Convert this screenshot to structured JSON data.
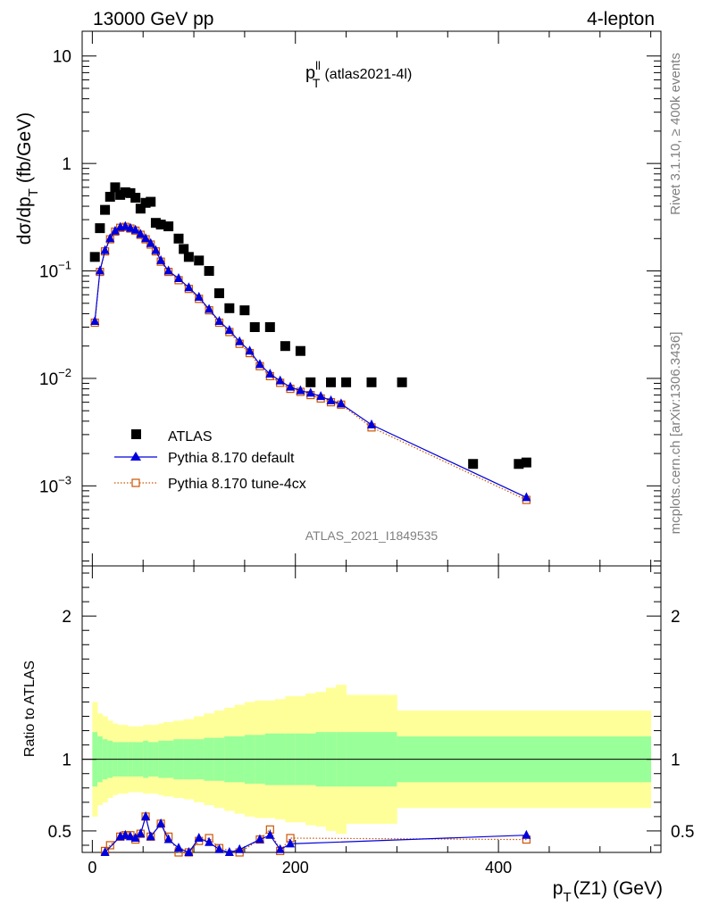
{
  "header": {
    "energy_label": "13000 GeV pp",
    "process_label": "4-lepton"
  },
  "side_labels": {
    "rivet": "Rivet 3.1.10, ≥ 400k events",
    "mcplots": "mcplots.cern.ch [arXiv:1306.3436]"
  },
  "chart_data": [
    {
      "type": "scatter",
      "panel": "main",
      "title_main": "p",
      "title_sup": "ll",
      "title_sub": "T",
      "title_suffix": "(atlas2021-4l)",
      "watermark": "ATLAS_2021_I1849535",
      "xlabel_main": "p",
      "xlabel_sub": "T",
      "xlabel_suffix": "(Z1) (GeV)",
      "ylabel_main": "dσ/dp",
      "ylabel_sub": "T",
      "ylabel_suffix": "(fb/GeV)",
      "xlim": [
        -10,
        560
      ],
      "ylim": [
        0.00018,
        17
      ],
      "yscale": "log",
      "x_ticks": [
        0,
        200,
        400
      ],
      "x_tick_labels": [
        "0",
        "200",
        "400"
      ],
      "y_ticks": [
        0.001,
        0.01,
        0.1,
        1,
        10
      ],
      "y_tick_labels": [
        {
          "base": "10",
          "exp": "−3"
        },
        {
          "base": "10",
          "exp": "−2"
        },
        {
          "base": "10",
          "exp": "−1"
        },
        {
          "base": "1",
          "exp": ""
        },
        {
          "base": "10",
          "exp": ""
        }
      ],
      "legend_position": "bottom-left",
      "series": [
        {
          "name": "ATLAS",
          "marker": "filled-square",
          "color": "#000000",
          "x": [
            2.5,
            7.5,
            12.5,
            17.5,
            22.5,
            27.5,
            32.5,
            37.5,
            42.5,
            47.5,
            52.5,
            57.5,
            62.5,
            67.5,
            75,
            85,
            90,
            95,
            105,
            115,
            125,
            135,
            150,
            160,
            175,
            190,
            205,
            215,
            235,
            250,
            275,
            305,
            375,
            420,
            427.5
          ],
          "y": [
            0.135,
            0.25,
            0.37,
            0.49,
            0.6,
            0.51,
            0.54,
            0.53,
            0.48,
            0.38,
            0.43,
            0.44,
            0.28,
            0.27,
            0.26,
            0.2,
            0.16,
            0.135,
            0.125,
            0.1,
            0.062,
            0.045,
            0.043,
            0.03,
            0.03,
            0.02,
            0.018,
            0.0092,
            0.0092,
            0.0092,
            0.0092,
            0.0092,
            0.0016,
            0.0016,
            0.00165
          ]
        },
        {
          "name": "Pythia 8.170 default",
          "marker": "filled-triangle",
          "line": "solid",
          "color": "#0000dd",
          "x": [
            2.5,
            7.5,
            12.5,
            17.5,
            22.5,
            27.5,
            32.5,
            37.5,
            42.5,
            47.5,
            52.5,
            57.5,
            62.5,
            67.5,
            75,
            85,
            95,
            105,
            115,
            125,
            135,
            145,
            155,
            165,
            175,
            185,
            195,
            205,
            215,
            225,
            235,
            245,
            275,
            427.5
          ],
          "y": [
            0.034,
            0.1,
            0.155,
            0.2,
            0.235,
            0.255,
            0.26,
            0.25,
            0.24,
            0.22,
            0.2,
            0.18,
            0.155,
            0.125,
            0.1,
            0.085,
            0.07,
            0.057,
            0.044,
            0.034,
            0.028,
            0.022,
            0.018,
            0.0135,
            0.011,
            0.0095,
            0.0083,
            0.0077,
            0.0073,
            0.0068,
            0.0062,
            0.0058,
            0.0037,
            0.00078
          ]
        },
        {
          "name": "Pythia 8.170 tune-4cx",
          "marker": "open-square",
          "line": "dotted",
          "color": "#cc5500",
          "x": [
            2.5,
            7.5,
            12.5,
            17.5,
            22.5,
            27.5,
            32.5,
            37.5,
            42.5,
            47.5,
            52.5,
            57.5,
            62.5,
            67.5,
            75,
            85,
            95,
            105,
            115,
            125,
            135,
            145,
            155,
            165,
            175,
            185,
            195,
            205,
            215,
            225,
            235,
            245,
            275,
            427.5
          ],
          "y": [
            0.033,
            0.098,
            0.152,
            0.197,
            0.232,
            0.252,
            0.257,
            0.248,
            0.237,
            0.217,
            0.197,
            0.176,
            0.152,
            0.122,
            0.098,
            0.082,
            0.068,
            0.055,
            0.043,
            0.033,
            0.027,
            0.021,
            0.0172,
            0.013,
            0.0105,
            0.0091,
            0.008,
            0.0075,
            0.007,
            0.0065,
            0.006,
            0.0057,
            0.0035,
            0.00074
          ]
        }
      ]
    },
    {
      "type": "scatter",
      "panel": "ratio",
      "ylabel": "Ratio to ATLAS",
      "xlim": [
        -10,
        560
      ],
      "ylim": [
        0.35,
        2.35
      ],
      "y_ticks": [
        0.5,
        1,
        2
      ],
      "y_tick_labels": [
        "0.5",
        "1",
        "2"
      ],
      "reference_line": 1,
      "bands": {
        "bin_edges": [
          0,
          5,
          10,
          15,
          20,
          25,
          30,
          35,
          40,
          45,
          50,
          55,
          60,
          65,
          70,
          80,
          90,
          100,
          110,
          120,
          130,
          140,
          150,
          160,
          170,
          180,
          190,
          200,
          210,
          220,
          230,
          240,
          250,
          300,
          550
        ],
        "inner_color": "#99ff99",
        "outer_color": "#ffff99",
        "inner_half_width": [
          0.19,
          0.16,
          0.14,
          0.13,
          0.12,
          0.12,
          0.12,
          0.12,
          0.12,
          0.12,
          0.13,
          0.12,
          0.12,
          0.13,
          0.13,
          0.14,
          0.14,
          0.14,
          0.15,
          0.15,
          0.16,
          0.16,
          0.17,
          0.17,
          0.18,
          0.18,
          0.18,
          0.18,
          0.18,
          0.19,
          0.19,
          0.19,
          0.19,
          0.16
        ],
        "outer_half_width": [
          0.4,
          0.32,
          0.3,
          0.27,
          0.25,
          0.24,
          0.24,
          0.23,
          0.23,
          0.23,
          0.24,
          0.24,
          0.24,
          0.25,
          0.26,
          0.27,
          0.28,
          0.3,
          0.32,
          0.34,
          0.36,
          0.38,
          0.4,
          0.41,
          0.41,
          0.42,
          0.44,
          0.44,
          0.46,
          0.47,
          0.5,
          0.52,
          0.45,
          0.34
        ]
      },
      "series": [
        {
          "name": "Pythia 8.170 default",
          "marker": "filled-triangle",
          "line": "solid",
          "color": "#0000dd",
          "x": [
            7.5,
            12.5,
            17.5,
            22.5,
            27.5,
            32.5,
            37.5,
            42.5,
            47.5,
            52.5,
            57.5,
            62.5,
            67.5,
            75,
            85,
            95,
            105,
            115,
            125,
            135,
            145,
            155,
            165,
            175,
            185,
            195,
            205,
            215,
            225,
            235,
            245,
            275,
            427.5
          ],
          "y": [
            0.33,
            0.35,
            0.34,
            0.32,
            0.46,
            0.47,
            0.46,
            0.45,
            0.48,
            0.6,
            0.46,
            0.32,
            0.55,
            0.44,
            0.38,
            0.35,
            0.45,
            0.42,
            0.37,
            0.35,
            0.37,
            0.26,
            0.44,
            0.47,
            0.37,
            0.41,
            0.3,
            0.32,
            0.32,
            0.3,
            0.32,
            0.34,
            0.47
          ]
        },
        {
          "name": "Pythia 8.170 tune-4cx",
          "marker": "open-square",
          "line": "dotted",
          "color": "#cc5500",
          "x": [
            7.5,
            12.5,
            17.5,
            22.5,
            27.5,
            32.5,
            37.5,
            42.5,
            47.5,
            52.5,
            57.5,
            62.5,
            67.5,
            75,
            85,
            95,
            105,
            115,
            125,
            135,
            145,
            155,
            165,
            175,
            185,
            195,
            205,
            215,
            225,
            235,
            245,
            275,
            427.5
          ],
          "y": [
            0.33,
            0.36,
            0.4,
            0.33,
            0.46,
            0.47,
            0.47,
            0.44,
            0.48,
            0.6,
            0.46,
            0.32,
            0.55,
            0.46,
            0.35,
            0.35,
            0.43,
            0.45,
            0.38,
            0.33,
            0.35,
            0.28,
            0.44,
            0.51,
            0.36,
            0.45,
            0.3,
            0.3,
            0.3,
            0.28,
            0.3,
            0.31,
            0.44
          ]
        }
      ]
    }
  ]
}
